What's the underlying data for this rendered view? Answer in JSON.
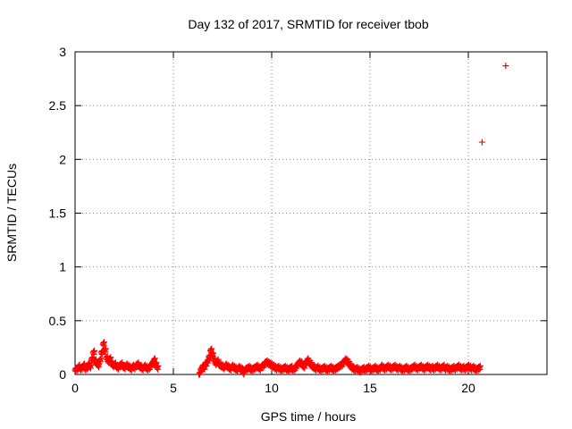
{
  "chart_data": {
    "type": "scatter",
    "title": "Day 132 of 2017, SRMTID for receiver tbob",
    "xlabel": "GPS time / hours",
    "ylabel": "SRMTID / TECUs",
    "xlim": [
      0,
      24
    ],
    "ylim": [
      0,
      3
    ],
    "xticks": [
      0,
      5,
      10,
      15,
      20
    ],
    "xtick_labels": [
      "0",
      "5",
      "10",
      "15",
      "20"
    ],
    "yticks": [
      0,
      0.5,
      1,
      1.5,
      2,
      2.5,
      3
    ],
    "ytick_labels": [
      "0",
      "0.5",
      "1",
      "1.5",
      "2",
      "2.5",
      "3"
    ],
    "grid": true,
    "marker": "+",
    "color": "#ff0000",
    "series": [
      {
        "name": "SRMTID",
        "segments": [
          {
            "x_start": 0.0,
            "x_step": 0.0833,
            "values": [
              0.04,
              0.05,
              0.07,
              0.05,
              0.06,
              0.08,
              0.05,
              0.06,
              0.09,
              0.07,
              0.14,
              0.2,
              0.12,
              0.1,
              0.08,
              0.13,
              0.2,
              0.28,
              0.22,
              0.15,
              0.12,
              0.14,
              0.1,
              0.08,
              0.09,
              0.07,
              0.06,
              0.08,
              0.09,
              0.07,
              0.06,
              0.08,
              0.07,
              0.06,
              0.05,
              0.07,
              0.06,
              0.08,
              0.09,
              0.07,
              0.06,
              0.05,
              0.07,
              0.06,
              0.05,
              0.06,
              0.08,
              0.1,
              0.13,
              0.09,
              0.06
            ]
          },
          {
            "x_start": 6.3,
            "x_step": 0.0833,
            "values": [
              0.0,
              0.04,
              0.07,
              0.06,
              0.09,
              0.12,
              0.16,
              0.22,
              0.18,
              0.13,
              0.1,
              0.12,
              0.09,
              0.08,
              0.07,
              0.06,
              0.08,
              0.07,
              0.06,
              0.05,
              0.07,
              0.06,
              0.05,
              0.04,
              0.06,
              0.05,
              0.04,
              0.01,
              0.04,
              0.05,
              0.06,
              0.05,
              0.04,
              0.05,
              0.06,
              0.07,
              0.06,
              0.05,
              0.07,
              0.08,
              0.1,
              0.11,
              0.1,
              0.09,
              0.08,
              0.07,
              0.06,
              0.05,
              0.06,
              0.05,
              0.04,
              0.05,
              0.06,
              0.05,
              0.04,
              0.05,
              0.06,
              0.04,
              0.05,
              0.07,
              0.09,
              0.11,
              0.1,
              0.08,
              0.07,
              0.1,
              0.13,
              0.11,
              0.09,
              0.07,
              0.06,
              0.05,
              0.06,
              0.05,
              0.04,
              0.05,
              0.06,
              0.05,
              0.04,
              0.05,
              0.06,
              0.05,
              0.04,
              0.05,
              0.06,
              0.07,
              0.08,
              0.09,
              0.11,
              0.13,
              0.12,
              0.1,
              0.08,
              0.06,
              0.05,
              0.04,
              0.05,
              0.04,
              0.03,
              0.04,
              0.05,
              0.04,
              0.05,
              0.06,
              0.05,
              0.04,
              0.05,
              0.06,
              0.05,
              0.04,
              0.05,
              0.07,
              0.06,
              0.05,
              0.06,
              0.07,
              0.06,
              0.05,
              0.06,
              0.07,
              0.06,
              0.05,
              0.06,
              0.05,
              0.04,
              0.05,
              0.06,
              0.05,
              0.04,
              0.05,
              0.06,
              0.07,
              0.06,
              0.05,
              0.06,
              0.07,
              0.06,
              0.05,
              0.06,
              0.07,
              0.06,
              0.05,
              0.06,
              0.05,
              0.06,
              0.07,
              0.06,
              0.05,
              0.06,
              0.07,
              0.05,
              0.06,
              0.05,
              0.04,
              0.05,
              0.06,
              0.05,
              0.06,
              0.07,
              0.06,
              0.05,
              0.06,
              0.05,
              0.06,
              0.07,
              0.06,
              0.05,
              0.06,
              0.05,
              0.04,
              0.05,
              0.06
            ]
          }
        ],
        "outliers": [
          {
            "x": 20.7,
            "y": 2.16
          },
          {
            "x": 21.9,
            "y": 2.87
          }
        ]
      }
    ]
  }
}
